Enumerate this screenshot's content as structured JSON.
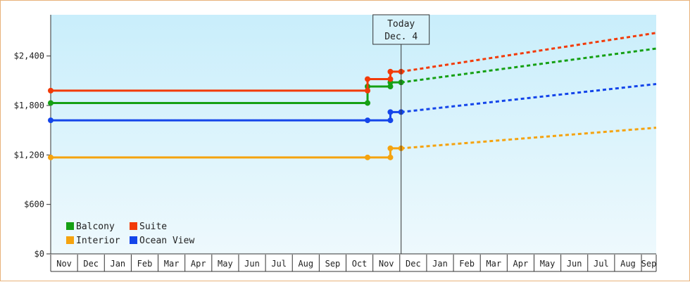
{
  "chart_data": {
    "type": "line",
    "title": "",
    "xlabel": "",
    "ylabel": "",
    "ylim": [
      0,
      2900
    ],
    "y_ticks": [
      {
        "value": 0,
        "label": "$0"
      },
      {
        "value": 600,
        "label": "$600"
      },
      {
        "value": 1200,
        "label": "$1,200"
      },
      {
        "value": 1800,
        "label": "$1,800"
      },
      {
        "value": 2400,
        "label": "$2,400"
      }
    ],
    "x_months": [
      "Nov",
      "Dec",
      "Jan",
      "Feb",
      "Mar",
      "Apr",
      "May",
      "Jun",
      "Jul",
      "Aug",
      "Sep",
      "Oct",
      "Nov",
      "Dec",
      "Jan",
      "Feb",
      "Mar",
      "Apr",
      "May",
      "Jun",
      "Jul",
      "Aug",
      "Sep"
    ],
    "xlim_month_index": [
      0,
      22.55
    ],
    "today": {
      "label_line1": "Today",
      "label_line2": "Dec. 4",
      "month_index": 13.05
    },
    "grid": false,
    "legend_placement": "bottom-left",
    "series": [
      {
        "name": "Balcony",
        "color": "#15a014",
        "history": [
          {
            "x": 0,
            "y": 1830
          },
          {
            "x": 11.8,
            "y": 1830
          },
          {
            "x": 11.8,
            "y": 2030
          },
          {
            "x": 12.65,
            "y": 2030
          },
          {
            "x": 12.65,
            "y": 2080
          },
          {
            "x": 13.05,
            "y": 2080
          }
        ],
        "history_markers": [
          0,
          11.8,
          12.65,
          13.05
        ],
        "projection_end": {
          "x": 22.55,
          "y": 2490
        }
      },
      {
        "name": "Suite",
        "color": "#f23a08",
        "history": [
          {
            "x": 0,
            "y": 1980
          },
          {
            "x": 11.8,
            "y": 1980
          },
          {
            "x": 11.8,
            "y": 2120
          },
          {
            "x": 12.65,
            "y": 2120
          },
          {
            "x": 12.65,
            "y": 2210
          },
          {
            "x": 13.05,
            "y": 2210
          }
        ],
        "history_markers": [
          0,
          11.8,
          12.65,
          13.05
        ],
        "projection_end": {
          "x": 22.55,
          "y": 2680
        }
      },
      {
        "name": "Interior",
        "color": "#f5a30f",
        "history": [
          {
            "x": 0,
            "y": 1170
          },
          {
            "x": 11.8,
            "y": 1170
          },
          {
            "x": 12.65,
            "y": 1170
          },
          {
            "x": 12.65,
            "y": 1280
          },
          {
            "x": 13.05,
            "y": 1280
          }
        ],
        "history_markers": [
          0,
          11.8,
          12.65,
          13.05
        ],
        "projection_end": {
          "x": 22.55,
          "y": 1530
        }
      },
      {
        "name": "Ocean View",
        "color": "#1445ea",
        "history": [
          {
            "x": 0,
            "y": 1620
          },
          {
            "x": 11.8,
            "y": 1620
          },
          {
            "x": 12.65,
            "y": 1620
          },
          {
            "x": 12.65,
            "y": 1720
          },
          {
            "x": 13.05,
            "y": 1720
          }
        ],
        "history_markers": [
          0,
          11.8,
          12.65,
          13.05
        ],
        "projection_end": {
          "x": 22.55,
          "y": 2060
        }
      }
    ]
  },
  "legend": {
    "balcony": "Balcony",
    "suite": "Suite",
    "interior": "Interior",
    "ocean_view": "Ocean View"
  }
}
